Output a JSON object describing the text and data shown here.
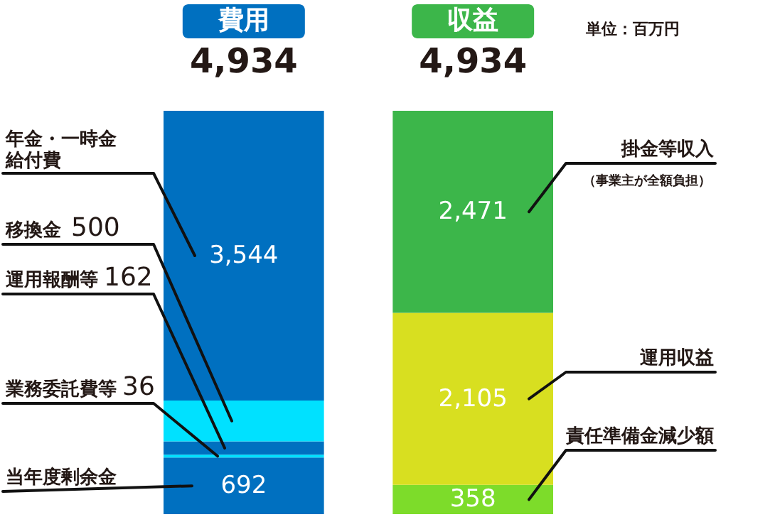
{
  "chart_data": {
    "type": "bar",
    "stacked": true,
    "grid": false,
    "categories": [
      "費用",
      "収益"
    ],
    "totals": [
      "4,934",
      "4,934"
    ],
    "annotations": [
      "単位：百万円",
      "（事業主が全額負担）"
    ],
    "series": [
      {
        "name": "当年度剰余金",
        "color": "#0070c0",
        "values": [
          692,
          null
        ],
        "value_labels": [
          "692",
          null
        ]
      },
      {
        "name": "業務委託費等",
        "color": "#00e1ff",
        "values": [
          36,
          null
        ],
        "value_labels": [
          "36",
          null
        ]
      },
      {
        "name": "運用報酬等",
        "color": "#0070c0",
        "values": [
          162,
          null
        ],
        "value_labels": [
          "162",
          null
        ]
      },
      {
        "name": "移換金",
        "color": "#00e1ff",
        "values": [
          500,
          null
        ],
        "value_labels": [
          "500",
          null
        ]
      },
      {
        "name": "年金・一時金給付費",
        "color": "#0070c0",
        "values": [
          3544,
          null
        ],
        "value_labels": [
          "3,544",
          null
        ]
      },
      {
        "name": "責任準備金減少額",
        "color": "#7ddc2a",
        "values": [
          null,
          358
        ],
        "value_labels": [
          null,
          "358"
        ]
      },
      {
        "name": "運用収益",
        "color": "#d8df20",
        "values": [
          null,
          2105
        ],
        "value_labels": [
          null,
          "2,105"
        ]
      },
      {
        "name": "掛金等収入",
        "color": "#3cb64a",
        "values": [
          null,
          2471
        ],
        "value_labels": [
          null,
          "2,471"
        ]
      }
    ]
  }
}
